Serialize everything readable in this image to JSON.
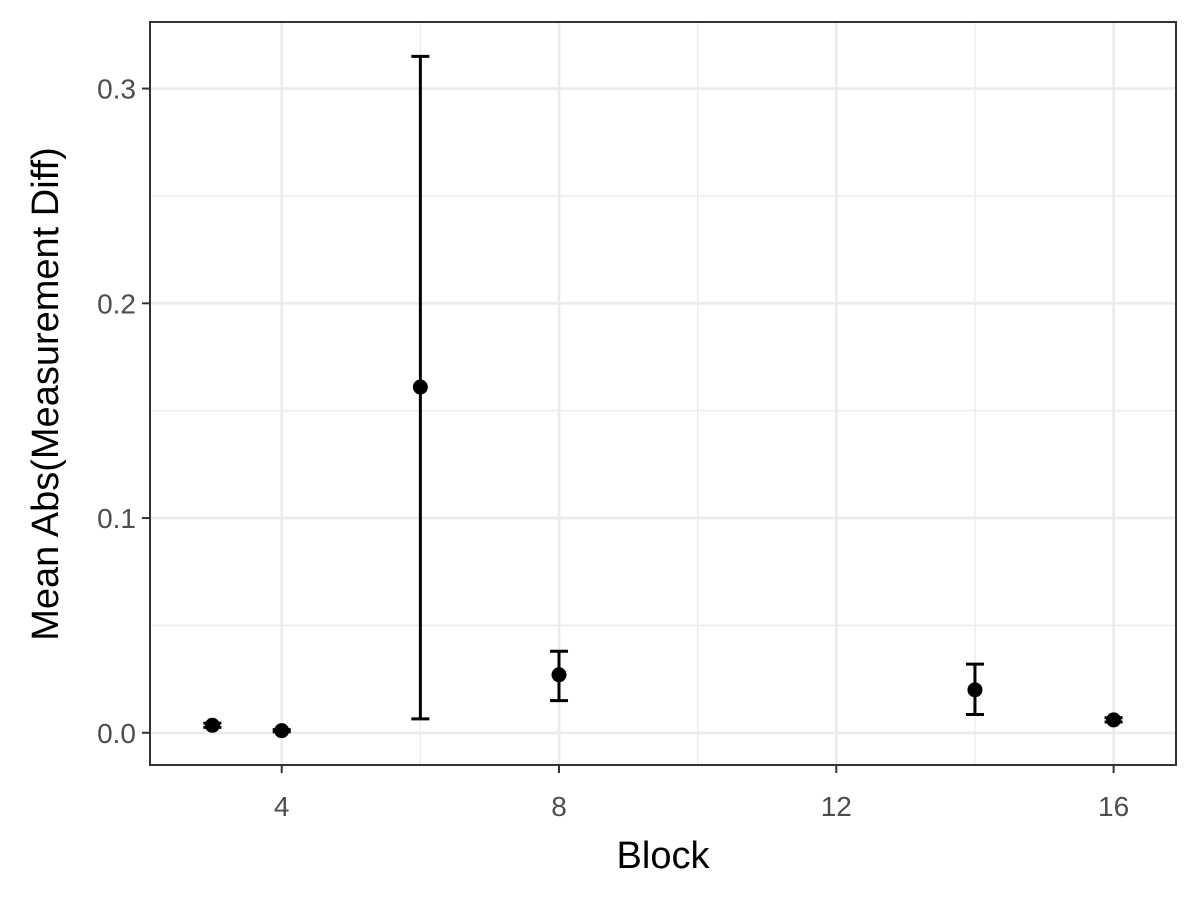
{
  "chart_data": {
    "type": "scatter",
    "title": "",
    "xlabel": "Block",
    "ylabel": "Mean Abs(Measurement Diff)",
    "xlim": [
      2.1,
      16.9
    ],
    "ylim": [
      -0.015,
      0.331
    ],
    "x_ticks": [
      4,
      8,
      12,
      16
    ],
    "x_minor_ticks": [
      6,
      10,
      14
    ],
    "y_ticks": [
      0.0,
      0.1,
      0.2,
      0.3
    ],
    "y_tick_labels": [
      "0.0",
      "0.1",
      "0.2",
      "0.3"
    ],
    "y_minor_ticks": [
      0.05,
      0.15,
      0.25
    ],
    "grid": true,
    "legend": "none",
    "points": [
      {
        "x": 3,
        "y": 0.0035,
        "ymin": 0.0025,
        "ymax": 0.0045
      },
      {
        "x": 4,
        "y": 0.001,
        "ymin": 0.0005,
        "ymax": 0.0015
      },
      {
        "x": 6,
        "y": 0.161,
        "ymin": 0.0065,
        "ymax": 0.315
      },
      {
        "x": 8,
        "y": 0.027,
        "ymin": 0.015,
        "ymax": 0.038
      },
      {
        "x": 14,
        "y": 0.02,
        "ymin": 0.0085,
        "ymax": 0.032
      },
      {
        "x": 16,
        "y": 0.006,
        "ymin": 0.005,
        "ymax": 0.007
      }
    ]
  },
  "colors": {
    "panel_border": "#333333",
    "grid": "#ebebeb",
    "point": "#000000",
    "errorbar": "#000000",
    "tick_text": "#4d4d4d",
    "axis_text": "#000000"
  }
}
